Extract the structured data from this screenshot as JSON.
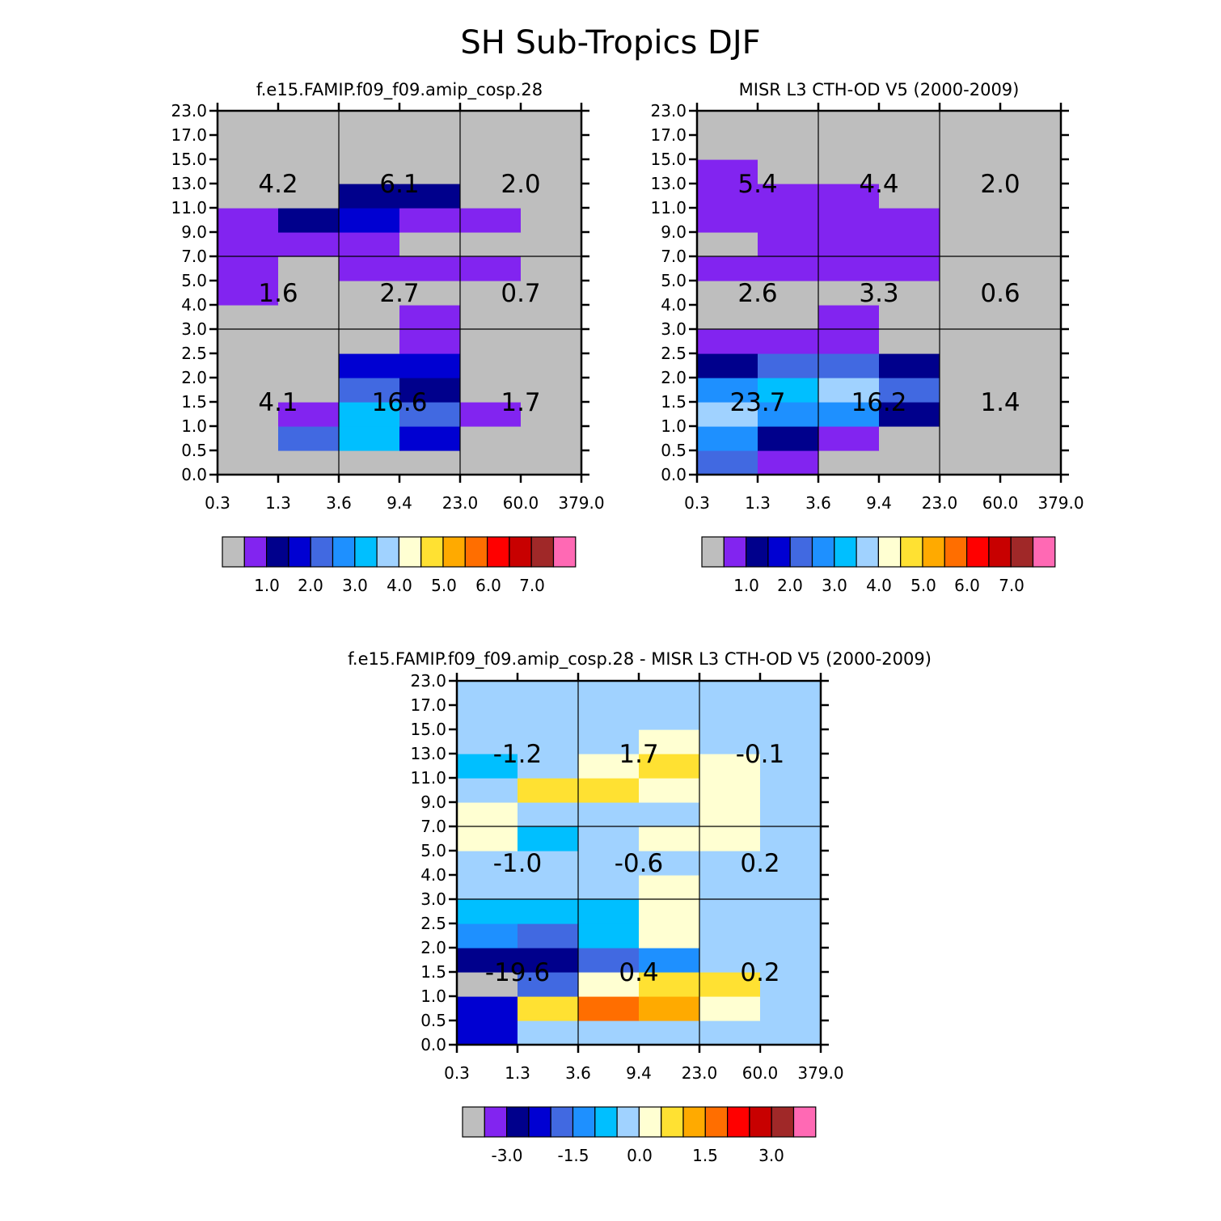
{
  "figure_title": "SH Sub-Tropics DJF",
  "colors": {
    "cell_outline": "#000000",
    "palette": [
      "#BEBEBE",
      "#8224F0",
      "#00008C",
      "#0000D2",
      "#4169E1",
      "#1E90FF",
      "#00BFFF",
      "#A0D2FF",
      "#FFFFD2",
      "#FFE132",
      "#FFAA00",
      "#FF6E00",
      "#FF0000",
      "#C80000",
      "#A02828",
      "#FF69B4"
    ]
  },
  "chart_data": [
    {
      "id": "model",
      "type": "heatmap",
      "title": "f.e15.FAMIP.f09_f09.amip_cosp.28",
      "x_ticks": [
        "0.3",
        "1.3",
        "3.6",
        "9.4",
        "23.0",
        "60.0",
        "379.0"
      ],
      "y_ticks": [
        "0.0",
        "0.5",
        "1.0",
        "1.5",
        "2.0",
        "2.5",
        "3.0",
        "4.0",
        "5.0",
        "7.0",
        "9.0",
        "11.0",
        "13.0",
        "15.0",
        "17.0",
        "23.0"
      ],
      "cells": [
        [
          0,
          0,
          0,
          0,
          0,
          0
        ],
        [
          0,
          4,
          6,
          3,
          0,
          0
        ],
        [
          0,
          1,
          6,
          4,
          1,
          0
        ],
        [
          0,
          0,
          4,
          2,
          0,
          0
        ],
        [
          0,
          0,
          3,
          3,
          0,
          0
        ],
        [
          0,
          0,
          0,
          1,
          0,
          0
        ],
        [
          0,
          0,
          0,
          1,
          0,
          0
        ],
        [
          1,
          0,
          0,
          0,
          0,
          0
        ],
        [
          1,
          0,
          1,
          1,
          1,
          0
        ],
        [
          1,
          1,
          1,
          0,
          0,
          0
        ],
        [
          1,
          2,
          3,
          1,
          1,
          0
        ],
        [
          0,
          0,
          2,
          2,
          0,
          0
        ],
        [
          0,
          0,
          0,
          0,
          0,
          0
        ],
        [
          0,
          0,
          0,
          0,
          0,
          0
        ],
        [
          0,
          0,
          0,
          0,
          0,
          0
        ]
      ],
      "group_values": [
        [
          "4.2",
          "6.1",
          "2.0"
        ],
        [
          "1.6",
          "2.7",
          "0.7"
        ],
        [
          "4.1",
          "16.6",
          "1.7"
        ]
      ],
      "colorbar": {
        "labels": [
          "1.0",
          "2.0",
          "3.0",
          "4.0",
          "5.0",
          "6.0",
          "7.0"
        ]
      }
    },
    {
      "id": "obs",
      "type": "heatmap",
      "title": "MISR L3 CTH-OD V5 (2000-2009)",
      "x_ticks": [
        "0.3",
        "1.3",
        "3.6",
        "9.4",
        "23.0",
        "60.0",
        "379.0"
      ],
      "y_ticks": [
        "0.0",
        "0.5",
        "1.0",
        "1.5",
        "2.0",
        "2.5",
        "3.0",
        "4.0",
        "5.0",
        "7.0",
        "9.0",
        "11.0",
        "13.0",
        "15.0",
        "17.0",
        "23.0"
      ],
      "cells": [
        [
          4,
          1,
          0,
          0,
          0,
          0
        ],
        [
          5,
          2,
          1,
          0,
          0,
          0
        ],
        [
          7,
          5,
          5,
          2,
          0,
          0
        ],
        [
          5,
          6,
          7,
          4,
          0,
          0
        ],
        [
          2,
          4,
          4,
          2,
          0,
          0
        ],
        [
          1,
          1,
          1,
          0,
          0,
          0
        ],
        [
          0,
          0,
          1,
          0,
          0,
          0
        ],
        [
          0,
          0,
          0,
          0,
          0,
          0
        ],
        [
          1,
          1,
          1,
          1,
          0,
          0
        ],
        [
          0,
          1,
          1,
          1,
          0,
          0
        ],
        [
          1,
          1,
          1,
          1,
          0,
          0
        ],
        [
          1,
          1,
          1,
          0,
          0,
          0
        ],
        [
          1,
          0,
          0,
          0,
          0,
          0
        ],
        [
          0,
          0,
          0,
          0,
          0,
          0
        ],
        [
          0,
          0,
          0,
          0,
          0,
          0
        ]
      ],
      "group_values": [
        [
          "5.4",
          "4.4",
          "2.0"
        ],
        [
          "2.6",
          "3.3",
          "0.6"
        ],
        [
          "23.7",
          "16.2",
          "1.4"
        ]
      ],
      "colorbar": {
        "labels": [
          "1.0",
          "2.0",
          "3.0",
          "4.0",
          "5.0",
          "6.0",
          "7.0"
        ]
      }
    },
    {
      "id": "diff",
      "type": "heatmap",
      "title": "f.e15.FAMIP.f09_f09.amip_cosp.28 - MISR L3 CTH-OD V5 (2000-2009)",
      "x_ticks": [
        "0.3",
        "1.3",
        "3.6",
        "9.4",
        "23.0",
        "60.0",
        "379.0"
      ],
      "y_ticks": [
        "0.0",
        "0.5",
        "1.0",
        "1.5",
        "2.0",
        "2.5",
        "3.0",
        "4.0",
        "5.0",
        "7.0",
        "9.0",
        "11.0",
        "13.0",
        "15.0",
        "17.0",
        "23.0"
      ],
      "cells": [
        [
          3,
          7,
          7,
          7,
          7,
          7
        ],
        [
          3,
          9,
          11,
          10,
          8,
          7
        ],
        [
          0,
          4,
          8,
          9,
          9,
          7
        ],
        [
          2,
          2,
          4,
          5,
          7,
          7
        ],
        [
          5,
          4,
          6,
          8,
          7,
          7
        ],
        [
          6,
          6,
          6,
          8,
          7,
          7
        ],
        [
          7,
          7,
          7,
          8,
          7,
          7
        ],
        [
          7,
          7,
          7,
          7,
          7,
          7
        ],
        [
          8,
          6,
          7,
          8,
          8,
          7
        ],
        [
          8,
          7,
          7,
          7,
          8,
          7
        ],
        [
          7,
          9,
          9,
          8,
          8,
          7
        ],
        [
          6,
          7,
          8,
          9,
          8,
          7
        ],
        [
          7,
          7,
          7,
          8,
          7,
          7
        ],
        [
          7,
          7,
          7,
          7,
          7,
          7
        ],
        [
          7,
          7,
          7,
          7,
          7,
          7
        ]
      ],
      "group_values": [
        [
          "-1.2",
          "1.7",
          "-0.1"
        ],
        [
          "-1.0",
          "-0.6",
          "0.2"
        ],
        [
          "-19.6",
          "0.4",
          "0.2"
        ]
      ],
      "colorbar": {
        "labels": [
          "-3.0",
          "-1.5",
          "0.0",
          "1.5",
          "3.0"
        ]
      }
    }
  ]
}
